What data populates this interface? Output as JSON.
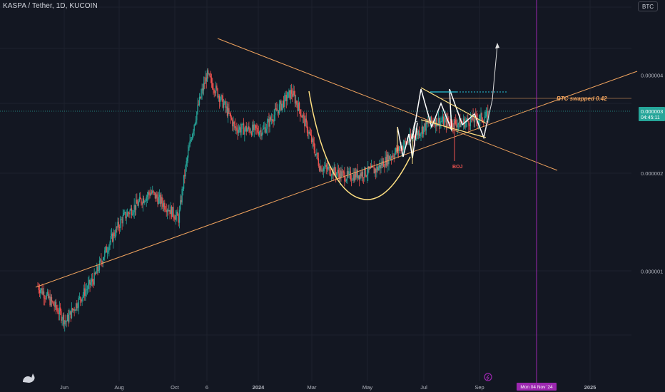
{
  "header": {
    "title": "KASPA / Tether, 1D, KUCOIN",
    "currency_button": "BTC"
  },
  "price_badge": {
    "price": "0.000003",
    "countdown": "04:45:11",
    "color": "#26a69a"
  },
  "annotations": {
    "btc_swapped": "BTC swapped 0.42",
    "boj": "BOJ",
    "time_badge": "Mon 04 Nov '24"
  },
  "colors": {
    "background": "#131722",
    "up_candle": "#26a69a",
    "down_candle": "#ef5350",
    "trendline": "#f0a35e",
    "pattern": "#ffe082",
    "arrow": "#e0e0e0",
    "cursor_line": "#9c27b0",
    "price_line": "#26a69a"
  },
  "chart_data": {
    "type": "candlestick",
    "title": "KASPA / Tether, 1D, KUCOIN",
    "y_scale": "log",
    "y_ticks": [
      {
        "label": "0.000004",
        "value": 4
      },
      {
        "label": "0.000003",
        "value": 3
      },
      {
        "label": "0.000002",
        "value": 2
      },
      {
        "label": "0.000001",
        "value": 1
      }
    ],
    "x_ticks": [
      "Jun",
      "Aug",
      "Oct",
      "6",
      "2024",
      "Mar",
      "May",
      "Jul",
      "Sep",
      "2025"
    ],
    "series": [
      {
        "date": "2023-05",
        "close": 0.9
      },
      {
        "date": "2023-06",
        "close": 0.7
      },
      {
        "date": "2023-07",
        "close": 0.95
      },
      {
        "date": "2023-08",
        "close": 1.45
      },
      {
        "date": "2023-09",
        "close": 1.75
      },
      {
        "date": "2023-10",
        "close": 1.45
      },
      {
        "date": "2023-11",
        "close": 4.0
      },
      {
        "date": "2023-12",
        "close": 2.75
      },
      {
        "date": "2024-01",
        "close": 2.7
      },
      {
        "date": "2024-02",
        "close": 3.55
      },
      {
        "date": "2024-03",
        "close": 2.1
      },
      {
        "date": "2024-04",
        "close": 1.95
      },
      {
        "date": "2024-05",
        "close": 2.05
      },
      {
        "date": "2024-06",
        "close": 2.45
      },
      {
        "date": "2024-07",
        "close": 2.9
      },
      {
        "date": "2024-08",
        "close": 2.85
      },
      {
        "date": "2024-09",
        "close": 3.0
      }
    ],
    "grid": true
  }
}
